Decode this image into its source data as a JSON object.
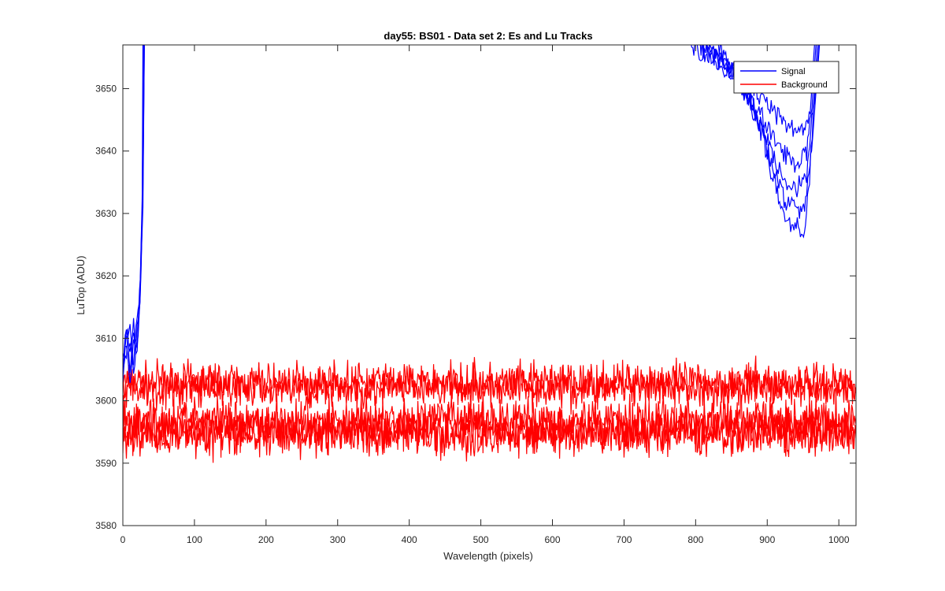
{
  "chart_data": {
    "type": "line",
    "title": "day55: BS01 - Data set 2: Es and Lu Tracks",
    "xlabel": "Wavelength (pixels)",
    "ylabel": "LuTop (ADU)",
    "xlim": [
      0,
      1024
    ],
    "ylim": [
      3580,
      3657
    ],
    "xticks": [
      0,
      100,
      200,
      300,
      400,
      500,
      600,
      700,
      800,
      900,
      1000
    ],
    "yticks": [
      3580,
      3590,
      3600,
      3610,
      3620,
      3630,
      3640,
      3650
    ],
    "grid": false,
    "legend": {
      "placement": "top-right",
      "entries": [
        "Signal",
        "Background"
      ]
    },
    "colors": {
      "Signal": "#0000ff",
      "Background": "#ff0000",
      "axes": "#262626"
    },
    "series": [
      {
        "name": "Signal",
        "color": "#0000ff",
        "note_shape": "steep rise near left edge, re-enters from top near 790, dips to minimum near 950, rises off top near 970",
        "traces": [
          {
            "left": [
              [
                0,
                3604
              ],
              [
                5,
                3612
              ],
              [
                10,
                3606
              ],
              [
                15,
                3611
              ],
              [
                20,
                3607
              ],
              [
                24,
                3617
              ],
              [
                27,
                3630
              ],
              [
                28,
                3657
              ]
            ],
            "right": [
              [
                790,
                3657
              ],
              [
                840,
                3654
              ],
              [
                880,
                3650
              ],
              [
                910,
                3646
              ],
              [
                930,
                3644
              ],
              [
                950,
                3643
              ],
              [
                960,
                3646
              ],
              [
                966,
                3657
              ]
            ]
          },
          {
            "left": [
              [
                0,
                3606
              ],
              [
                5,
                3610
              ],
              [
                10,
                3604
              ],
              [
                15,
                3609
              ],
              [
                20,
                3612
              ],
              [
                24,
                3618
              ],
              [
                27,
                3632
              ],
              [
                29,
                3657
              ]
            ],
            "right": [
              [
                800,
                3657
              ],
              [
                850,
                3653
              ],
              [
                890,
                3646
              ],
              [
                920,
                3640
              ],
              [
                940,
                3638
              ],
              [
                955,
                3640
              ],
              [
                964,
                3650
              ],
              [
                968,
                3657
              ]
            ]
          },
          {
            "left": [
              [
                0,
                3603
              ],
              [
                5,
                3608
              ],
              [
                10,
                3611
              ],
              [
                15,
                3605
              ],
              [
                20,
                3610
              ],
              [
                24,
                3615
              ],
              [
                27,
                3629
              ],
              [
                29,
                3657
              ]
            ],
            "right": [
              [
                810,
                3657
              ],
              [
                860,
                3651
              ],
              [
                895,
                3643
              ],
              [
                920,
                3636
              ],
              [
                940,
                3634
              ],
              [
                955,
                3636
              ],
              [
                965,
                3648
              ],
              [
                970,
                3657
              ]
            ]
          },
          {
            "left": [
              [
                0,
                3607
              ],
              [
                5,
                3612
              ],
              [
                10,
                3607
              ],
              [
                15,
                3612
              ],
              [
                20,
                3608
              ],
              [
                24,
                3616
              ],
              [
                28,
                3631
              ],
              [
                30,
                3657
              ]
            ],
            "right": [
              [
                820,
                3657
              ],
              [
                870,
                3650
              ],
              [
                900,
                3640
              ],
              [
                925,
                3632
              ],
              [
                945,
                3630
              ],
              [
                955,
                3632
              ],
              [
                966,
                3648
              ],
              [
                972,
                3657
              ]
            ]
          },
          {
            "left": [
              [
                0,
                3605
              ],
              [
                5,
                3611
              ],
              [
                10,
                3608
              ],
              [
                15,
                3606
              ],
              [
                20,
                3611
              ],
              [
                25,
                3620
              ],
              [
                28,
                3634
              ],
              [
                30,
                3657
              ]
            ],
            "right": [
              [
                830,
                3657
              ],
              [
                880,
                3648
              ],
              [
                905,
                3637
              ],
              [
                925,
                3629
              ],
              [
                945,
                3628
              ],
              [
                952,
                3626
              ],
              [
                962,
                3640
              ],
              [
                973,
                3657
              ]
            ]
          }
        ]
      },
      {
        "name": "Background",
        "color": "#ff0000",
        "note_shape": "noisy flat traces spanning full x range",
        "traces": [
          {
            "mean": 3603,
            "amplitude": 2.2
          },
          {
            "mean": 3602,
            "amplitude": 2.2
          },
          {
            "mean": 3597,
            "amplitude": 2.5
          },
          {
            "mean": 3595.5,
            "amplitude": 2.5
          },
          {
            "mean": 3594.5,
            "amplitude": 2.3
          }
        ]
      }
    ]
  }
}
